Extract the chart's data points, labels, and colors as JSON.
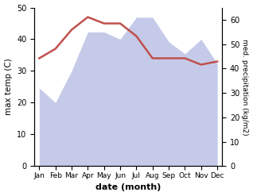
{
  "months": [
    "Jan",
    "Feb",
    "Mar",
    "Apr",
    "May",
    "Jun",
    "Jul",
    "Aug",
    "Sep",
    "Oct",
    "Nov",
    "Dec"
  ],
  "x": [
    0,
    1,
    2,
    3,
    4,
    5,
    6,
    7,
    8,
    9,
    10,
    11
  ],
  "temperature": [
    34,
    37,
    43,
    47,
    45,
    45,
    41,
    34,
    34,
    34,
    32,
    33
  ],
  "precipitation": [
    32,
    26,
    39,
    55,
    55,
    52,
    61,
    61,
    51,
    46,
    52,
    42
  ],
  "temp_color": "#c0504d",
  "precip_fill_color": "#c5cae9",
  "precip_line_color": "#aab0d8",
  "ylabel_left": "max temp (C)",
  "ylabel_right": "med. precipitation (kg/m2)",
  "xlabel": "date (month)",
  "ylim_left": [
    0,
    50
  ],
  "ylim_right": [
    0,
    65
  ],
  "yticks_left": [
    0,
    10,
    20,
    30,
    40,
    50
  ],
  "yticks_right": [
    0,
    10,
    20,
    30,
    40,
    50,
    60
  ],
  "background_color": "#ffffff"
}
